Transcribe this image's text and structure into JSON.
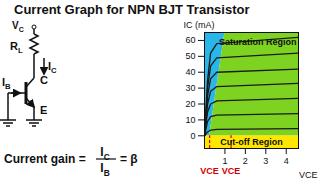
{
  "title": "Current Graph for NPN BJT Transistor",
  "diagram": {
    "supply": {
      "main": "V",
      "sub": "C"
    },
    "resistor": {
      "main": "R",
      "sub": "L"
    },
    "collector_current": {
      "main": "I",
      "sub": "C"
    },
    "base_current": {
      "main": "I",
      "sub": "B"
    },
    "collector": "C",
    "emitter": "E",
    "gain": {
      "text": "Current gain =",
      "numerator": {
        "main": "I",
        "sub": "C"
      },
      "denominator": {
        "main": "I",
        "sub": "B"
      },
      "result": "= β"
    }
  },
  "chart_data": {
    "type": "line",
    "x_label": "VCE",
    "y_label": "IC (mA)",
    "xlim": [
      0,
      4.6
    ],
    "xticks": [
      1,
      2,
      3,
      4
    ],
    "ylim": [
      -8,
      65
    ],
    "yticks": [
      0,
      10,
      20,
      30,
      40,
      50,
      60
    ],
    "x": [
      0,
      0.15,
      0.3,
      0.6,
      4.6
    ],
    "series": [
      {
        "color": "#1a1a1a",
        "values": [
          0,
          2.5,
          3.5,
          4,
          4.5
        ]
      },
      {
        "color": "#1a1a1a",
        "values": [
          0,
          9,
          12,
          13,
          14
        ]
      },
      {
        "color": "#1a1a1a",
        "values": [
          0,
          15,
          20,
          22,
          23.5
        ]
      },
      {
        "color": "#1a1a1a",
        "values": [
          0,
          20,
          28,
          31,
          33
        ]
      },
      {
        "color": "#1a1a1a",
        "values": [
          0,
          25,
          36,
          40,
          42
        ]
      },
      {
        "color": "#1a1a1a",
        "values": [
          0,
          30,
          44,
          49,
          52
        ]
      },
      {
        "color": "#1a1a1a",
        "values": [
          0,
          35,
          52,
          58,
          62
        ]
      }
    ],
    "regions": {
      "saturation": {
        "label": "Saturation Region",
        "color": "#29b6e8",
        "boundary_x": [
          0.25,
          1.0
        ],
        "boundary_y": [
          0,
          65
        ]
      },
      "active": {
        "color": "#7ed321"
      },
      "cutoff": {
        "label": "Cut-off Region",
        "color": "#ffe600",
        "y_top": 0
      }
    },
    "markers": {
      "color": "#d40000",
      "line_style": "dashed",
      "items": [
        {
          "x": 0.25,
          "label": "VCE"
        },
        {
          "x": 1.3,
          "label": "VCE"
        }
      ]
    }
  }
}
